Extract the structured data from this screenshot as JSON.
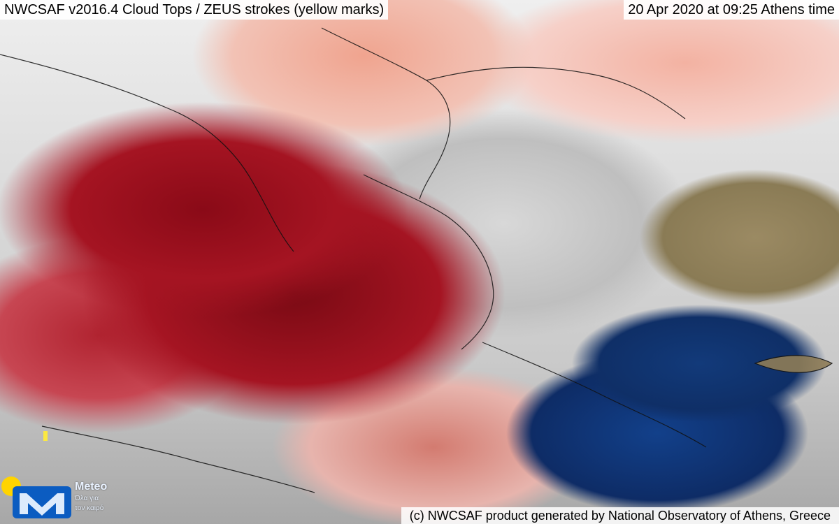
{
  "header": {
    "left_title": "NWCSAF v2016.4 Cloud Tops / ZEUS strokes (yellow marks)",
    "right_title": "20 Apr 2020 at 09:25 Athens time"
  },
  "footer": {
    "credits": "(c) NWCSAF product generated by National Observatory of Athens, Greece"
  },
  "logo": {
    "name": "Meteo",
    "tagline_line1": "Όλα για",
    "tagline_line2": "τον καιρό"
  },
  "colors": {
    "title_bg": "#ffffff",
    "logo_yellow": "#ffd400",
    "logo_blue": "#0b5cc1"
  },
  "icons": {
    "logo": "meteo-logo-icon"
  }
}
